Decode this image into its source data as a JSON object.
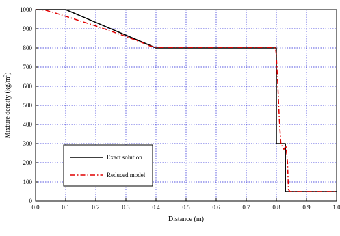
{
  "chart_data": {
    "type": "line",
    "title": "",
    "xlabel": "Distance (m)",
    "ylabel_main": "Mixture density (kg/m",
    "ylabel_sup": "3",
    "ylabel_tail": ")",
    "xlim": [
      0,
      1
    ],
    "ylim": [
      0,
      1000
    ],
    "x_ticks": [
      0.0,
      0.1,
      0.2,
      0.3,
      0.4,
      0.5,
      0.6,
      0.7,
      0.8,
      0.9,
      1.0
    ],
    "x_tick_labels": [
      "0.0",
      "0.1",
      "0.2",
      "0.3",
      "0.4",
      "0.5",
      "0.6",
      "0.7",
      "0.8",
      "0.9",
      "1.0"
    ],
    "y_ticks": [
      0,
      100,
      200,
      300,
      400,
      500,
      600,
      700,
      800,
      900,
      1000
    ],
    "y_tick_labels": [
      "0",
      "100",
      "200",
      "300",
      "400",
      "500",
      "600",
      "700",
      "800",
      "900",
      "1000"
    ],
    "grid": true,
    "legend_position": "lower-left",
    "series": [
      {
        "name": "Exact solution",
        "color": "#000000",
        "dash": "solid",
        "points": [
          [
            0.0,
            1000
          ],
          [
            0.1,
            1000
          ],
          [
            0.4,
            800
          ],
          [
            0.8,
            800
          ],
          [
            0.8,
            300
          ],
          [
            0.83,
            300
          ],
          [
            0.83,
            50
          ],
          [
            1.0,
            50
          ]
        ]
      },
      {
        "name": "Reduced model",
        "color": "#e00000",
        "dash": "dashdot",
        "points": [
          [
            0.0,
            1000
          ],
          [
            0.03,
            998
          ],
          [
            0.06,
            985
          ],
          [
            0.1,
            965
          ],
          [
            0.2,
            915
          ],
          [
            0.3,
            860
          ],
          [
            0.35,
            830
          ],
          [
            0.38,
            810
          ],
          [
            0.4,
            803
          ],
          [
            0.6,
            803
          ],
          [
            0.79,
            803
          ],
          [
            0.797,
            800
          ],
          [
            0.8,
            760
          ],
          [
            0.805,
            600
          ],
          [
            0.81,
            420
          ],
          [
            0.815,
            300
          ],
          [
            0.82,
            285
          ],
          [
            0.825,
            270
          ],
          [
            0.832,
            290
          ],
          [
            0.837,
            200
          ],
          [
            0.84,
            60
          ],
          [
            0.845,
            50
          ],
          [
            1.0,
            50
          ]
        ]
      }
    ]
  }
}
